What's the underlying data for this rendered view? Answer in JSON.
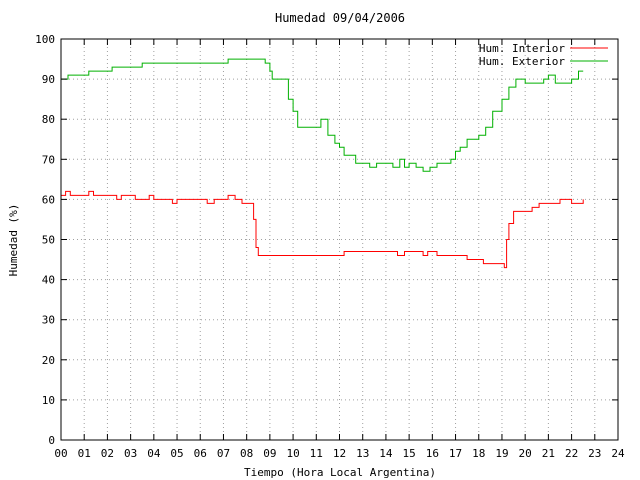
{
  "chart_data": {
    "type": "line",
    "title": "Humedad 09/04/2006",
    "xlabel": "Tiempo (Hora Local Argentina)",
    "ylabel": "Humedad (%)",
    "xlim": [
      0,
      24
    ],
    "ylim": [
      0,
      100
    ],
    "x_ticks": [
      "00",
      "01",
      "02",
      "03",
      "04",
      "05",
      "06",
      "07",
      "08",
      "09",
      "10",
      "11",
      "12",
      "13",
      "14",
      "15",
      "16",
      "17",
      "18",
      "19",
      "20",
      "21",
      "22",
      "23",
      "24"
    ],
    "y_ticks": [
      "0",
      "10",
      "20",
      "30",
      "40",
      "50",
      "60",
      "70",
      "80",
      "90",
      "100"
    ],
    "grid": true,
    "legend_position": "top-right",
    "series": [
      {
        "name": "Hum. Interior",
        "color": "#ff0000",
        "points": [
          [
            0.0,
            61
          ],
          [
            0.2,
            62
          ],
          [
            0.4,
            61
          ],
          [
            0.6,
            61
          ],
          [
            0.8,
            61
          ],
          [
            1.0,
            61
          ],
          [
            1.2,
            62
          ],
          [
            1.4,
            61
          ],
          [
            1.6,
            61
          ],
          [
            2.0,
            61
          ],
          [
            2.3,
            61
          ],
          [
            2.4,
            60
          ],
          [
            2.6,
            61
          ],
          [
            3.0,
            61
          ],
          [
            3.2,
            60
          ],
          [
            3.5,
            60
          ],
          [
            3.8,
            61
          ],
          [
            4.0,
            60
          ],
          [
            4.5,
            60
          ],
          [
            4.8,
            59
          ],
          [
            5.0,
            60
          ],
          [
            5.3,
            60
          ],
          [
            5.6,
            60
          ],
          [
            6.0,
            60
          ],
          [
            6.3,
            59
          ],
          [
            6.6,
            60
          ],
          [
            7.0,
            60
          ],
          [
            7.2,
            61
          ],
          [
            7.5,
            60
          ],
          [
            7.8,
            59
          ],
          [
            8.0,
            59
          ],
          [
            8.2,
            59
          ],
          [
            8.3,
            55
          ],
          [
            8.4,
            48
          ],
          [
            8.5,
            46
          ],
          [
            9.0,
            46
          ],
          [
            10.0,
            46
          ],
          [
            11.0,
            46
          ],
          [
            12.0,
            46
          ],
          [
            12.2,
            47
          ],
          [
            13.0,
            47
          ],
          [
            14.0,
            47
          ],
          [
            14.5,
            46
          ],
          [
            14.8,
            47
          ],
          [
            15.3,
            47
          ],
          [
            15.6,
            46
          ],
          [
            15.8,
            47
          ],
          [
            16.2,
            46
          ],
          [
            17.0,
            46
          ],
          [
            17.5,
            45
          ],
          [
            18.0,
            45
          ],
          [
            18.2,
            44
          ],
          [
            18.5,
            44
          ],
          [
            19.0,
            44
          ],
          [
            19.1,
            43
          ],
          [
            19.2,
            50
          ],
          [
            19.3,
            54
          ],
          [
            19.5,
            57
          ],
          [
            20.0,
            57
          ],
          [
            20.3,
            58
          ],
          [
            20.6,
            59
          ],
          [
            21.0,
            59
          ],
          [
            21.5,
            60
          ],
          [
            22.0,
            59
          ],
          [
            22.5,
            60
          ]
        ]
      },
      {
        "name": "Hum. Exterior",
        "color": "#00b000",
        "points": [
          [
            0.0,
            90
          ],
          [
            0.3,
            91
          ],
          [
            1.0,
            91
          ],
          [
            1.2,
            92
          ],
          [
            2.0,
            92
          ],
          [
            2.2,
            93
          ],
          [
            3.0,
            93
          ],
          [
            3.5,
            94
          ],
          [
            5.0,
            94
          ],
          [
            7.0,
            94
          ],
          [
            7.2,
            95
          ],
          [
            8.0,
            95
          ],
          [
            8.5,
            95
          ],
          [
            8.8,
            94
          ],
          [
            9.0,
            92
          ],
          [
            9.1,
            90
          ],
          [
            9.5,
            90
          ],
          [
            9.8,
            85
          ],
          [
            10.0,
            82
          ],
          [
            10.2,
            78
          ],
          [
            10.5,
            78
          ],
          [
            11.0,
            78
          ],
          [
            11.2,
            80
          ],
          [
            11.5,
            76
          ],
          [
            11.8,
            74
          ],
          [
            12.0,
            73
          ],
          [
            12.2,
            71
          ],
          [
            12.5,
            71
          ],
          [
            12.7,
            69
          ],
          [
            13.0,
            69
          ],
          [
            13.3,
            68
          ],
          [
            13.6,
            69
          ],
          [
            14.0,
            69
          ],
          [
            14.3,
            68
          ],
          [
            14.6,
            70
          ],
          [
            14.8,
            68
          ],
          [
            15.0,
            69
          ],
          [
            15.3,
            68
          ],
          [
            15.6,
            67
          ],
          [
            15.9,
            68
          ],
          [
            16.2,
            69
          ],
          [
            16.5,
            69
          ],
          [
            16.8,
            70
          ],
          [
            17.0,
            72
          ],
          [
            17.2,
            73
          ],
          [
            17.5,
            75
          ],
          [
            18.0,
            76
          ],
          [
            18.3,
            78
          ],
          [
            18.6,
            82
          ],
          [
            19.0,
            85
          ],
          [
            19.3,
            88
          ],
          [
            19.6,
            90
          ],
          [
            20.0,
            89
          ],
          [
            20.5,
            89
          ],
          [
            20.8,
            90
          ],
          [
            21.0,
            91
          ],
          [
            21.3,
            89
          ],
          [
            21.6,
            89
          ],
          [
            22.0,
            90
          ],
          [
            22.3,
            92
          ],
          [
            22.5,
            92
          ]
        ]
      }
    ]
  }
}
